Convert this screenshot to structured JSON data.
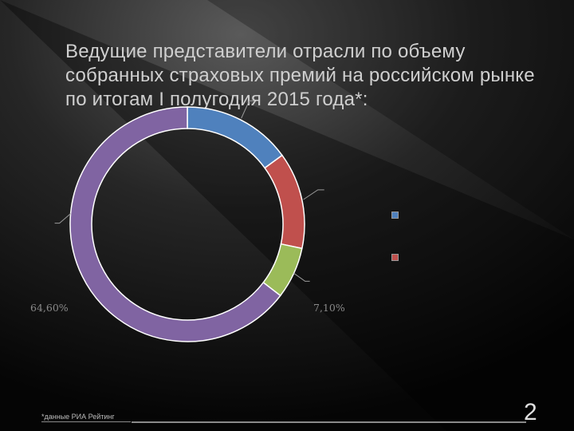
{
  "slide": {
    "title": "Ведущие представители отрасли по объему собранных страховых премий на российском рынке по итогам I полугодия 2015 года*:",
    "footnote": "*данные РИА Рейтинг",
    "page_number": "2"
  },
  "colors": {
    "background": "#000000",
    "title": "#cfcfcf",
    "label": "#8a8a8a"
  },
  "chart_data": {
    "type": "pie",
    "donut": true,
    "slices": [
      {
        "value": 15.0,
        "label": "",
        "color": "#4f81bd"
      },
      {
        "value": 13.3,
        "label": "",
        "color": "#c0504d"
      },
      {
        "value": 7.1,
        "label": "7,10%",
        "color": "#9bbb59"
      },
      {
        "value": 64.6,
        "label": "64,60%",
        "color": "#8064a2"
      }
    ],
    "legend": {
      "placement": "right",
      "entries": [
        {
          "label": "",
          "color": "#4f81bd"
        },
        {
          "label": "",
          "color": "#c0504d"
        }
      ]
    }
  }
}
